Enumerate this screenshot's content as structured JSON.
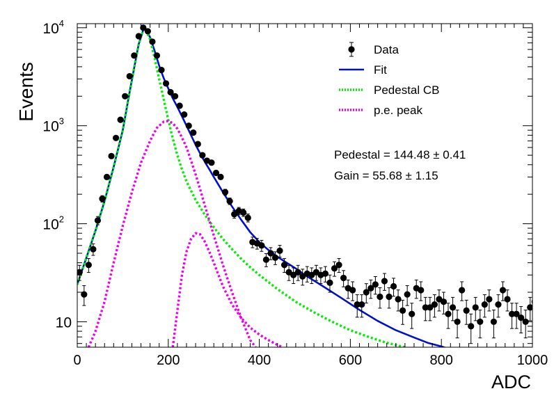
{
  "chart_data": {
    "type": "scatter",
    "xlabel": "ADC",
    "ylabel": "Events",
    "xlim": [
      0,
      1000
    ],
    "ylim": [
      5.5,
      11000
    ],
    "yscale": "log",
    "grid": false,
    "legend_position": "top-right",
    "x_ticks": [
      "0",
      "200",
      "400",
      "600",
      "800",
      "1000"
    ],
    "y_ticks": [
      {
        "value": 10,
        "base": "10",
        "exp": ""
      },
      {
        "value": 100,
        "base": "10",
        "exp": "2"
      },
      {
        "value": 1000,
        "base": "10",
        "exp": "3"
      },
      {
        "value": 10000,
        "base": "10",
        "exp": "4"
      }
    ],
    "annotations": [
      "Pedestal = 144.48 ± 0.41",
      "Gain = 55.68 ± 1.15"
    ],
    "series": [
      {
        "name": "Data",
        "kind": "points",
        "color": "#000000",
        "points": [
          [
            5,
            32
          ],
          [
            15,
            19
          ],
          [
            25,
            38
          ],
          [
            35,
            55
          ],
          [
            45,
            108
          ],
          [
            55,
            180
          ],
          [
            65,
            300
          ],
          [
            75,
            490
          ],
          [
            85,
            750
          ],
          [
            95,
            1150
          ],
          [
            105,
            2000
          ],
          [
            115,
            3200
          ],
          [
            125,
            5200
          ],
          [
            135,
            8200
          ],
          [
            145,
            10000
          ],
          [
            155,
            9200
          ],
          [
            165,
            7200
          ],
          [
            175,
            5200
          ],
          [
            185,
            3700
          ],
          [
            195,
            2700
          ],
          [
            205,
            2200
          ],
          [
            215,
            2000
          ],
          [
            225,
            1600
          ],
          [
            235,
            1300
          ],
          [
            245,
            1000
          ],
          [
            255,
            850
          ],
          [
            265,
            650
          ],
          [
            275,
            500
          ],
          [
            285,
            440
          ],
          [
            295,
            420
          ],
          [
            305,
            330
          ],
          [
            315,
            300
          ],
          [
            325,
            210
          ],
          [
            335,
            170
          ],
          [
            345,
            125
          ],
          [
            355,
            135
          ],
          [
            365,
            130
          ],
          [
            375,
            115
          ],
          [
            385,
            65
          ],
          [
            395,
            63
          ],
          [
            405,
            60
          ],
          [
            415,
            43
          ],
          [
            425,
            50
          ],
          [
            435,
            45
          ],
          [
            445,
            53
          ],
          [
            455,
            38
          ],
          [
            465,
            32
          ],
          [
            475,
            30
          ],
          [
            485,
            32
          ],
          [
            495,
            29
          ],
          [
            505,
            31
          ],
          [
            515,
            30
          ],
          [
            525,
            32
          ],
          [
            535,
            30
          ],
          [
            545,
            31
          ],
          [
            555,
            25
          ],
          [
            565,
            35
          ],
          [
            575,
            38
          ],
          [
            585,
            28
          ],
          [
            595,
            22
          ],
          [
            605,
            21
          ],
          [
            615,
            15
          ],
          [
            625,
            15
          ],
          [
            635,
            20
          ],
          [
            645,
            22
          ],
          [
            655,
            24
          ],
          [
            665,
            18
          ],
          [
            675,
            26
          ],
          [
            685,
            18
          ],
          [
            695,
            23
          ],
          [
            705,
            17
          ],
          [
            715,
            13
          ],
          [
            725,
            19
          ],
          [
            735,
            12
          ],
          [
            745,
            22
          ],
          [
            755,
            21
          ],
          [
            765,
            14
          ],
          [
            775,
            14
          ],
          [
            785,
            15
          ],
          [
            795,
            17
          ],
          [
            805,
            16
          ],
          [
            815,
            12
          ],
          [
            825,
            14
          ],
          [
            835,
            10
          ],
          [
            845,
            21
          ],
          [
            855,
            13
          ],
          [
            865,
            9
          ],
          [
            875,
            14
          ],
          [
            885,
            10
          ],
          [
            895,
            15
          ],
          [
            905,
            17
          ],
          [
            915,
            10
          ],
          [
            925,
            15
          ],
          [
            935,
            21
          ],
          [
            945,
            17
          ],
          [
            955,
            12
          ],
          [
            965,
            12
          ],
          [
            975,
            11
          ],
          [
            985,
            10
          ],
          [
            995,
            14
          ],
          [
            1005,
            16
          ],
          [
            1015,
            13
          ],
          [
            1025,
            12
          ],
          [
            1035,
            16
          ]
        ]
      },
      {
        "name": "Fit",
        "kind": "line",
        "style": "solid",
        "color": "#0011cc",
        "points": [
          [
            0,
            24
          ],
          [
            20,
            45
          ],
          [
            40,
            85
          ],
          [
            60,
            170
          ],
          [
            80,
            380
          ],
          [
            100,
            900
          ],
          [
            115,
            2200
          ],
          [
            125,
            3900
          ],
          [
            135,
            6800
          ],
          [
            145,
            9500
          ],
          [
            150,
            9800
          ],
          [
            160,
            8000
          ],
          [
            170,
            5800
          ],
          [
            180,
            4100
          ],
          [
            190,
            3050
          ],
          [
            200,
            2400
          ],
          [
            210,
            1900
          ],
          [
            220,
            1550
          ],
          [
            230,
            1250
          ],
          [
            240,
            1000
          ],
          [
            250,
            800
          ],
          [
            260,
            640
          ],
          [
            270,
            520
          ],
          [
            280,
            430
          ],
          [
            290,
            360
          ],
          [
            300,
            300
          ],
          [
            320,
            210
          ],
          [
            340,
            150
          ],
          [
            360,
            110
          ],
          [
            380,
            82
          ],
          [
            400,
            65
          ],
          [
            420,
            54
          ],
          [
            440,
            46
          ],
          [
            460,
            40
          ],
          [
            480,
            35
          ],
          [
            500,
            30
          ],
          [
            540,
            23
          ],
          [
            580,
            17.5
          ],
          [
            620,
            13.2
          ],
          [
            660,
            10.2
          ],
          [
            700,
            8.2
          ],
          [
            740,
            6.9
          ],
          [
            770,
            6.1
          ],
          [
            800,
            5.6
          ],
          [
            810,
            5.4
          ]
        ]
      },
      {
        "name": "Pedestal CB",
        "kind": "line",
        "style": "dotted",
        "color": "#00ee00",
        "points": [
          [
            0,
            24
          ],
          [
            20,
            45
          ],
          [
            40,
            85
          ],
          [
            60,
            170
          ],
          [
            80,
            380
          ],
          [
            100,
            900
          ],
          [
            115,
            2200
          ],
          [
            125,
            3900
          ],
          [
            135,
            6800
          ],
          [
            145,
            9500
          ],
          [
            150,
            9700
          ],
          [
            160,
            7600
          ],
          [
            170,
            4900
          ],
          [
            180,
            3000
          ],
          [
            190,
            1850
          ],
          [
            200,
            1150
          ],
          [
            210,
            740
          ],
          [
            220,
            500
          ],
          [
            230,
            360
          ],
          [
            240,
            270
          ],
          [
            260,
            175
          ],
          [
            280,
            124
          ],
          [
            300,
            92
          ],
          [
            320,
            70
          ],
          [
            340,
            55
          ],
          [
            360,
            44
          ],
          [
            380,
            36
          ],
          [
            400,
            30
          ],
          [
            440,
            21.5
          ],
          [
            480,
            16
          ],
          [
            520,
            12.5
          ],
          [
            560,
            10
          ],
          [
            600,
            8.2
          ],
          [
            640,
            7.0
          ],
          [
            680,
            6.1
          ],
          [
            720,
            5.5
          ]
        ]
      },
      {
        "name": "p.e. peak",
        "kind": "line",
        "style": "dotted",
        "color": "#ee00ee",
        "points": [
          [
            25,
            5.5
          ],
          [
            40,
            8
          ],
          [
            60,
            16
          ],
          [
            80,
            40
          ],
          [
            100,
            95
          ],
          [
            120,
            210
          ],
          [
            140,
            420
          ],
          [
            160,
            700
          ],
          [
            175,
            950
          ],
          [
            190,
            1100
          ],
          [
            200,
            1120
          ],
          [
            210,
            1060
          ],
          [
            220,
            930
          ],
          [
            230,
            760
          ],
          [
            240,
            600
          ],
          [
            250,
            440
          ],
          [
            260,
            320
          ],
          [
            270,
            225
          ],
          [
            280,
            155
          ],
          [
            300,
            76
          ],
          [
            320,
            38
          ],
          [
            340,
            20
          ],
          [
            360,
            11
          ],
          [
            380,
            6.5
          ],
          [
            392,
            5.5
          ]
        ]
      },
      {
        "name": "",
        "kind": "line",
        "style": "dotted",
        "color": "#ee00ee",
        "points": [
          [
            210,
            5.5
          ],
          [
            220,
            13
          ],
          [
            230,
            30
          ],
          [
            240,
            52
          ],
          [
            250,
            70
          ],
          [
            260,
            80
          ],
          [
            270,
            78
          ],
          [
            280,
            66
          ],
          [
            290,
            52
          ],
          [
            300,
            40
          ],
          [
            320,
            23
          ],
          [
            340,
            15
          ],
          [
            360,
            11
          ],
          [
            380,
            8.7
          ],
          [
            400,
            7.4
          ],
          [
            420,
            6.5
          ],
          [
            440,
            5.8
          ],
          [
            452,
            5.5
          ]
        ]
      }
    ]
  }
}
